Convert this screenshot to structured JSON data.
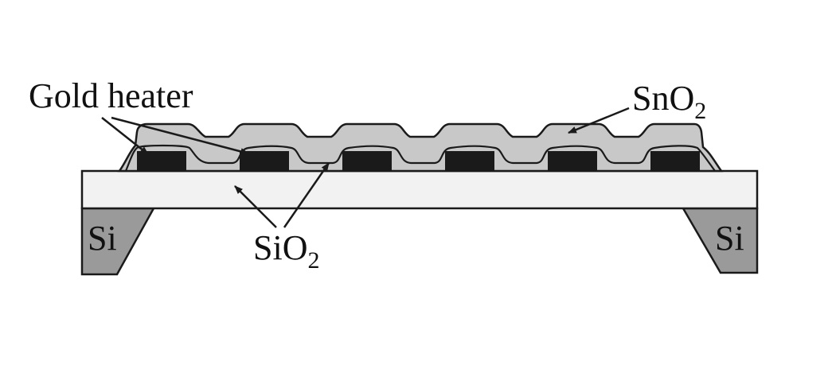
{
  "labels": {
    "gold_heater": "Gold heater",
    "sno2": {
      "main": "SnO",
      "sub": "2"
    },
    "sio2": {
      "main": "SiO",
      "sub": "2"
    },
    "si_left": "Si",
    "si_right": "Si"
  },
  "colors": {
    "background": "#ffffff",
    "outline": "#1a1a1a",
    "sio2_membrane": "#f2f2f2",
    "sno2_film": "#c8c8c8",
    "gold_heater": "#1a1a1a",
    "si_substrate": "#9a9a9a"
  },
  "heater_count": 6
}
